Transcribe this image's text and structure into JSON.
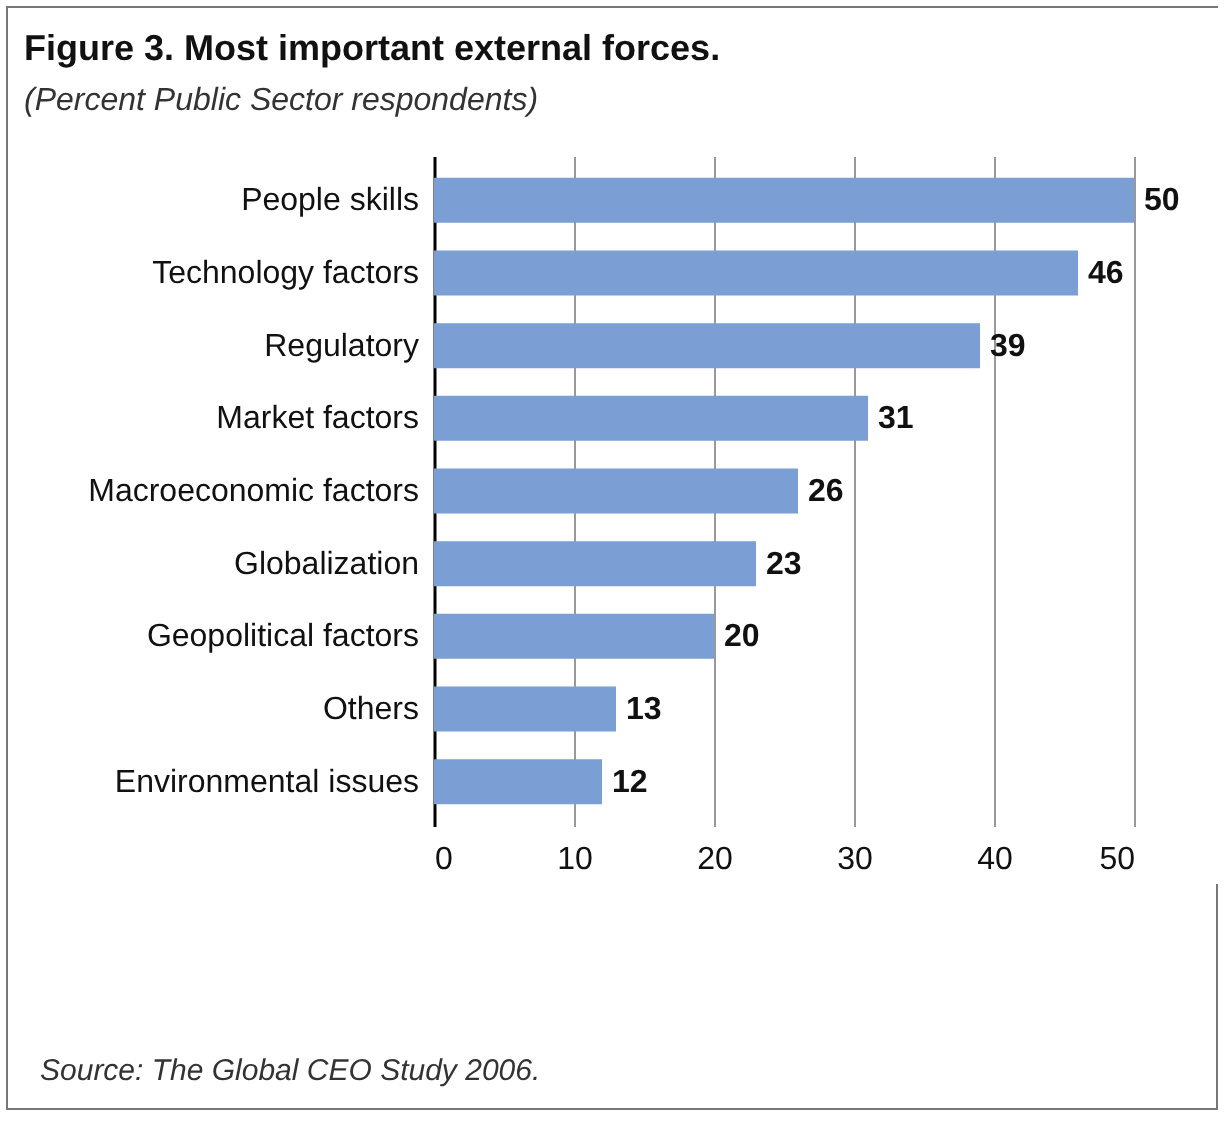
{
  "chart_data": {
    "type": "bar",
    "orientation": "horizontal",
    "title": "Figure 3. Most important external forces.",
    "subtitle": "(Percent Public Sector respondents)",
    "categories": [
      "People skills",
      "Technology factors",
      "Regulatory",
      "Market factors",
      "Macroeconomic factors",
      "Globalization",
      "Geopolitical factors",
      "Others",
      "Environmental issues"
    ],
    "values": [
      50,
      46,
      39,
      31,
      26,
      23,
      20,
      13,
      12
    ],
    "color": "#7b9fd4",
    "xlim": [
      0,
      50
    ],
    "xticks": [
      0,
      10,
      20,
      30,
      40,
      50
    ],
    "grid": "x",
    "data_labels": true,
    "annotations": [
      "Source: The Global CEO Study 2006."
    ]
  }
}
